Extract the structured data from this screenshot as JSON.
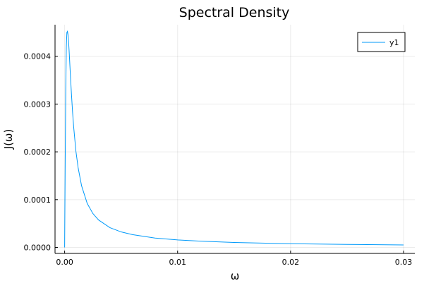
{
  "chart_data": {
    "type": "line",
    "title": "Spectral Density",
    "xlabel": "ω",
    "ylabel": "J(ω)",
    "xlim": [
      -0.00085,
      0.031
    ],
    "ylim": [
      -1.25e-05,
      0.000466
    ],
    "xticks": [
      0.0,
      0.01,
      0.02,
      0.03
    ],
    "xtick_labels": [
      "0.00",
      "0.01",
      "0.02",
      "0.03"
    ],
    "yticks": [
      0.0,
      0.0001,
      0.0002,
      0.0003,
      0.0004
    ],
    "ytick_labels": [
      "0.0000",
      "0.0001",
      "0.0002",
      "0.0003",
      "0.0004"
    ],
    "grid": true,
    "legend": "top-right",
    "series": [
      {
        "name": "y1",
        "color": "#009AFA",
        "x": [
          0.0,
          5e-05,
          0.0001,
          0.00015,
          0.0002,
          0.00025,
          0.0003,
          0.00035,
          0.0004,
          0.0005,
          0.0006,
          0.0007,
          0.0008,
          0.001,
          0.0012,
          0.0015,
          0.002,
          0.0025,
          0.003,
          0.004,
          0.005,
          0.006,
          0.008,
          0.01,
          0.012,
          0.015,
          0.02,
          0.025,
          0.03
        ],
        "values": [
          0.0,
          0.00018,
          0.00033,
          0.00042,
          0.00045,
          0.000452,
          0.000445,
          0.00043,
          0.00041,
          0.000365,
          0.000322,
          0.000284,
          0.000252,
          0.000201,
          0.000166,
          0.000129,
          9.2e-05,
          7.1e-05,
          5.75e-05,
          4.15e-05,
          3.25e-05,
          2.68e-05,
          1.97e-05,
          1.57e-05,
          1.31e-05,
          1.04e-05,
          7.8e-06,
          6.3e-06,
          5.2e-06
        ]
      }
    ]
  }
}
